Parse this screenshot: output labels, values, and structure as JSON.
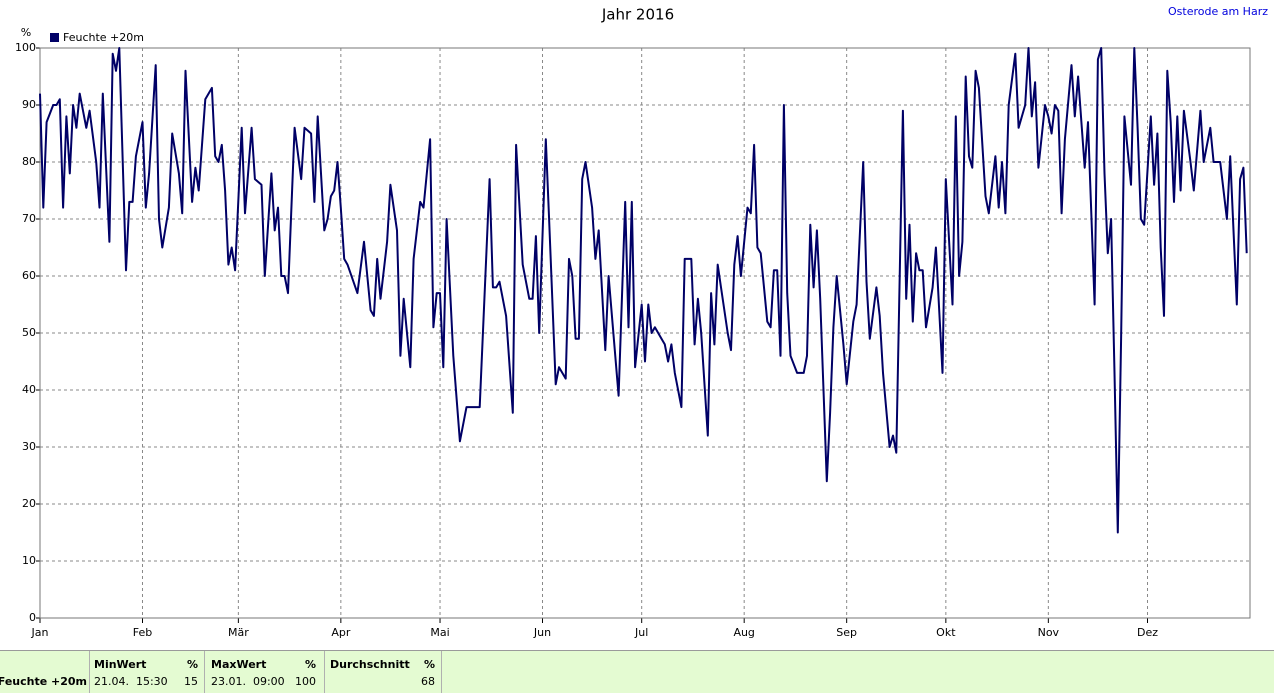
{
  "chart_data": {
    "type": "line",
    "title": "Jahr 2016",
    "ylabel": "%",
    "x": [
      0,
      1,
      2,
      4,
      5,
      6,
      7,
      8,
      9,
      10,
      11,
      12,
      14,
      15,
      17,
      18,
      19,
      21,
      22,
      23,
      24,
      26,
      27,
      28,
      29,
      31,
      32,
      33,
      35,
      36,
      37,
      39,
      40,
      42,
      43,
      44,
      46,
      47,
      48,
      50,
      52,
      53,
      54,
      55,
      56,
      57,
      58,
      59,
      61,
      62,
      64,
      65,
      67,
      68,
      70,
      71,
      72,
      73,
      74,
      75,
      77,
      79,
      80,
      82,
      83,
      84,
      86,
      87,
      88,
      89,
      90,
      91,
      92,
      93,
      96,
      98,
      100,
      101,
      102,
      103,
      105,
      106,
      108,
      109,
      110,
      112,
      113,
      115,
      116,
      118,
      119,
      120,
      121,
      122,
      123,
      125,
      127,
      129,
      130,
      132,
      133,
      136,
      137,
      138,
      139,
      141,
      143,
      144,
      146,
      148,
      149,
      150,
      151,
      153,
      154,
      156,
      157,
      159,
      160,
      161,
      162,
      163,
      164,
      165,
      167,
      168,
      169,
      171,
      172,
      175,
      177,
      178,
      179,
      180,
      182,
      183,
      184,
      185,
      186,
      188,
      189,
      190,
      191,
      192,
      194,
      195,
      197,
      198,
      199,
      200,
      202,
      203,
      204,
      205,
      206,
      208,
      209,
      210,
      211,
      212,
      214,
      215,
      216,
      217,
      218,
      220,
      221,
      222,
      223,
      224,
      225,
      226,
      227,
      229,
      231,
      232,
      233,
      234,
      235,
      236,
      238,
      239,
      240,
      241,
      243,
      244,
      246,
      247,
      249,
      250,
      251,
      253,
      254,
      255,
      257,
      258,
      259,
      261,
      262,
      263,
      264,
      265,
      266,
      267,
      268,
      270,
      271,
      273,
      274,
      276,
      277,
      278,
      279,
      280,
      281,
      282,
      283,
      284,
      286,
      287,
      289,
      290,
      291,
      292,
      293,
      295,
      296,
      298,
      299,
      300,
      301,
      302,
      304,
      305,
      306,
      307,
      308,
      309,
      310,
      312,
      313,
      314,
      316,
      317,
      319,
      320,
      321,
      322,
      323,
      324,
      325,
      326,
      327,
      328,
      330,
      331,
      332,
      333,
      334,
      336,
      337,
      338,
      339,
      340,
      341,
      342,
      343,
      344,
      345,
      346,
      348,
      349,
      351,
      352,
      354,
      355,
      357,
      359,
      360,
      362,
      363,
      364,
      365
    ],
    "series": [
      {
        "name": "Feuchte +20m",
        "color": "#000066",
        "values": [
          92,
          72,
          87,
          90,
          90,
          91,
          72,
          88,
          78,
          90,
          86,
          92,
          86,
          89,
          80,
          72,
          92,
          66,
          99,
          96,
          100,
          61,
          73,
          73,
          81,
          87,
          72,
          78,
          97,
          70,
          65,
          72,
          85,
          78,
          71,
          96,
          73,
          79,
          75,
          91,
          93,
          81,
          80,
          83,
          75,
          62,
          65,
          61,
          86,
          71,
          86,
          77,
          76,
          60,
          78,
          68,
          72,
          60,
          60,
          57,
          86,
          77,
          86,
          85,
          73,
          88,
          68,
          70,
          74,
          75,
          80,
          72,
          63,
          62,
          57,
          66,
          54,
          53,
          63,
          56,
          66,
          76,
          68,
          46,
          56,
          44,
          63,
          73,
          72,
          84,
          51,
          57,
          57,
          44,
          70,
          46,
          31,
          37,
          37,
          37,
          37,
          77,
          58,
          58,
          59,
          53,
          36,
          83,
          62,
          56,
          56,
          67,
          50,
          84,
          70,
          41,
          44,
          42,
          63,
          60,
          49,
          49,
          77,
          80,
          72,
          63,
          68,
          47,
          60,
          39,
          73,
          51,
          73,
          44,
          55,
          45,
          55,
          50,
          51,
          49,
          48,
          45,
          48,
          43,
          37,
          63,
          63,
          48,
          56,
          50,
          32,
          57,
          48,
          62,
          58,
          50,
          47,
          62,
          67,
          60,
          72,
          71,
          83,
          65,
          64,
          52,
          51,
          61,
          61,
          46,
          90,
          57,
          46,
          43,
          43,
          46,
          69,
          58,
          68,
          56,
          24,
          36,
          51,
          60,
          48,
          41,
          52,
          55,
          80,
          59,
          49,
          58,
          53,
          43,
          30,
          32,
          29,
          89,
          56,
          69,
          52,
          64,
          61,
          61,
          51,
          58,
          65,
          43,
          77,
          55,
          88,
          60,
          66,
          95,
          81,
          79,
          96,
          93,
          74,
          71,
          81,
          72,
          80,
          71,
          90,
          99,
          86,
          90,
          100,
          88,
          94,
          79,
          90,
          88,
          85,
          90,
          89,
          71,
          84,
          97,
          88,
          95,
          79,
          87,
          55,
          98,
          100,
          78,
          64,
          70,
          43,
          15,
          49,
          88,
          76,
          100,
          86,
          70,
          69,
          88,
          76,
          85,
          65,
          53,
          96,
          87,
          73,
          88,
          75,
          89,
          80,
          75,
          89,
          80,
          86,
          80,
          80,
          70,
          81,
          55,
          77,
          79,
          64
        ]
      }
    ],
    "xlim": [
      0,
      366
    ],
    "xticks": [
      {
        "value": 0,
        "label": "Jan"
      },
      {
        "value": 31,
        "label": "Feb"
      },
      {
        "value": 60,
        "label": "Mär"
      },
      {
        "value": 91,
        "label": "Apr"
      },
      {
        "value": 121,
        "label": "Mai"
      },
      {
        "value": 152,
        "label": "Jun"
      },
      {
        "value": 182,
        "label": "Jul"
      },
      {
        "value": 213,
        "label": "Aug"
      },
      {
        "value": 244,
        "label": "Sep"
      },
      {
        "value": 274,
        "label": "Okt"
      },
      {
        "value": 305,
        "label": "Nov"
      },
      {
        "value": 335,
        "label": "Dez"
      }
    ],
    "ylim": [
      0,
      100
    ],
    "yticks": [
      0,
      10,
      20,
      30,
      40,
      50,
      60,
      70,
      80,
      90,
      100
    ],
    "grid": true,
    "legend": "top-left"
  },
  "station": "Osterode am Harz",
  "stats": {
    "series_label": "Feuchte +20m",
    "columns": [
      {
        "header": "MinWert",
        "unit": "%",
        "time": "21.04.  15:30",
        "value": "15"
      },
      {
        "header": "MaxWert",
        "unit": "%",
        "time": "23.01.  09:00",
        "value": "100"
      },
      {
        "header": "Durchschnitt",
        "unit": "%",
        "value": "68"
      }
    ]
  }
}
